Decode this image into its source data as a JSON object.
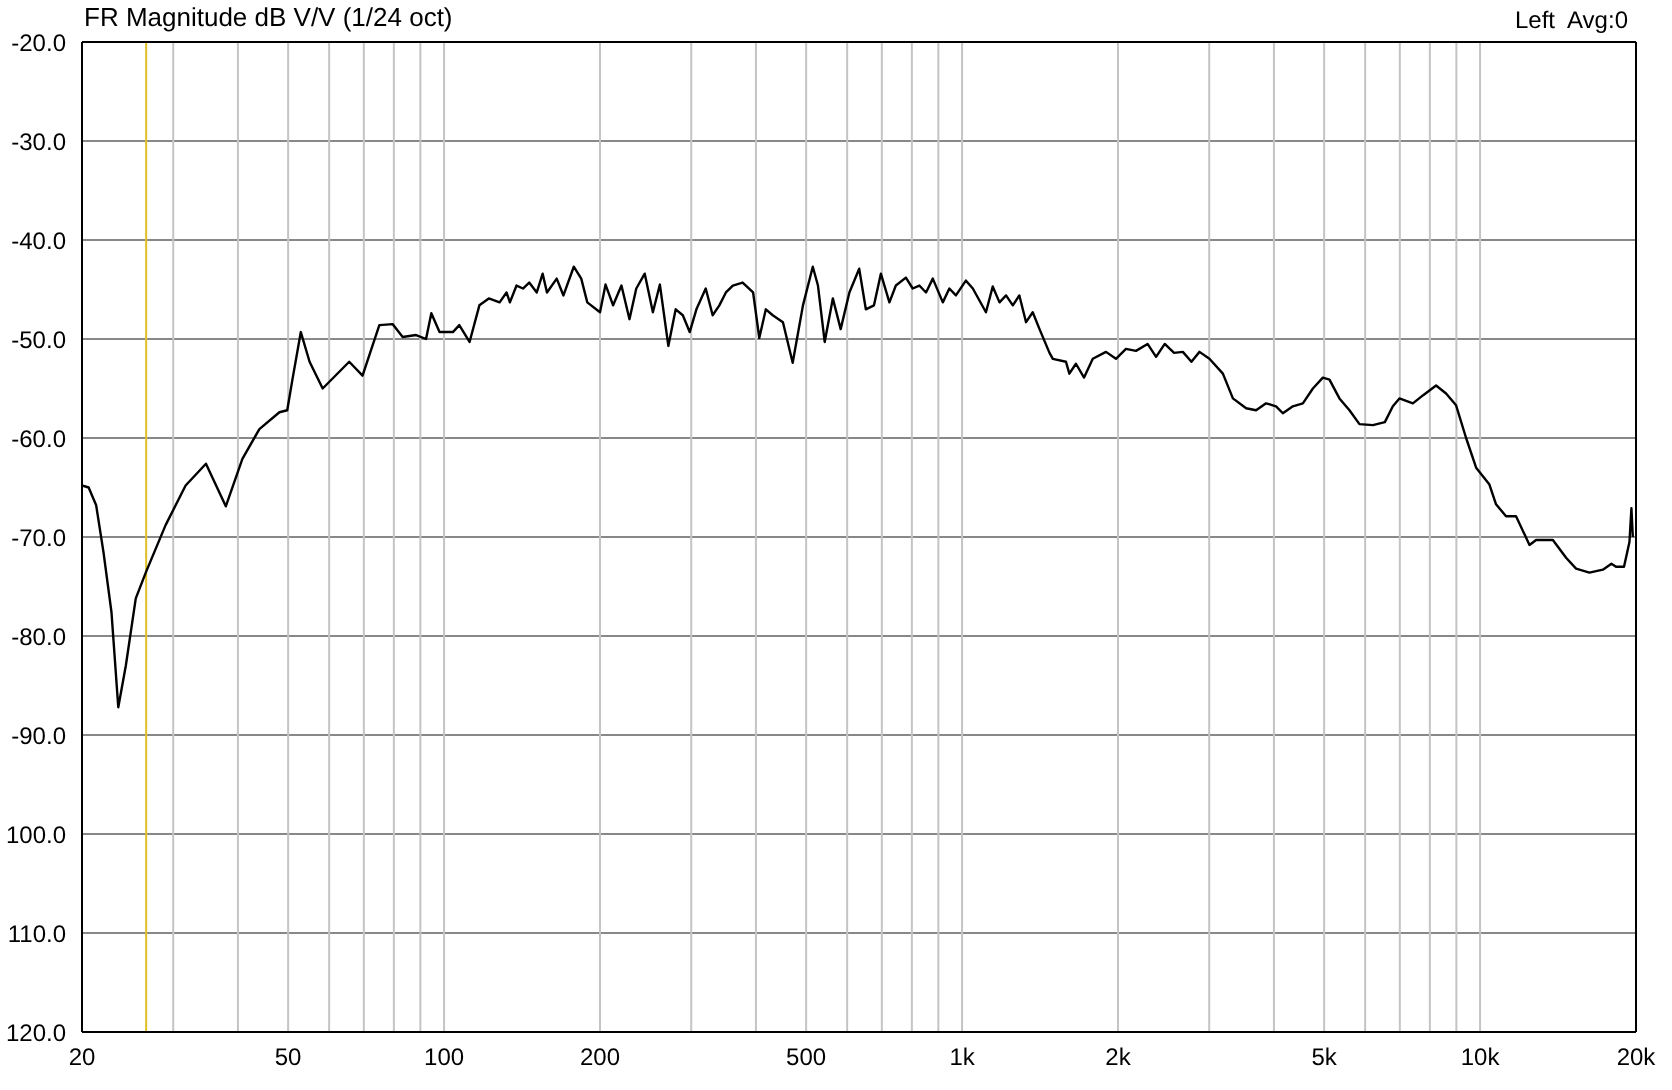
{
  "chart_data": {
    "type": "line",
    "title": "FR Magnitude dB V/V (1/24 oct)",
    "annotations": [
      "Left  Avg:0"
    ],
    "x": [
      20,
      20.6,
      21.3,
      22.0,
      22.8,
      23.5,
      24.3,
      25.4,
      26.6,
      29.0,
      31.7,
      34.7,
      37.9,
      40.8,
      44.0,
      48.1,
      49.8,
      51.0,
      52.9,
      55.0,
      58.3,
      65.6,
      69.6,
      75.0,
      79.6,
      83.2,
      88.3,
      92.3,
      94.5,
      98.0,
      104,
      107,
      112,
      117,
      122,
      128,
      132,
      134,
      138,
      142,
      146,
      151,
      155,
      158,
      165,
      170,
      178,
      184,
      189,
      200,
      205,
      212,
      220,
      228,
      235,
      244,
      253,
      261,
      271,
      280,
      289,
      298,
      307,
      320,
      330,
      340,
      350,
      361,
      377,
      395,
      406,
      418,
      431,
      451,
      471,
      493,
      515,
      527,
      543,
      563,
      583,
      606,
      633,
      652,
      676,
      697,
      724,
      745,
      779,
      803,
      827,
      852,
      878,
      918,
      945,
      973,
      1017,
      1049,
      1112,
      1146,
      1181,
      1216,
      1253,
      1290,
      1329,
      1369,
      1411,
      1475,
      1497,
      1587,
      1611,
      1659,
      1720,
      1788,
      1896,
      1982,
      2072,
      2166,
      2281,
      2369,
      2462,
      2566,
      2668,
      2772,
      2873,
      3003,
      3188,
      3333,
      3535,
      3695,
      3863,
      4038,
      4162,
      4351,
      4549,
      4756,
      4972,
      5120,
      5352,
      5596,
      5850,
      6210,
      6549,
      6786,
      6988,
      7418,
      7755,
      8224,
      8598,
      8989,
      9398,
      9826,
      10425,
      10736,
      11224,
      11734,
      12457,
      12829,
      13822,
      14657,
      15323,
      16261,
      17260,
      17930,
      18301,
      18962,
      19426,
      19597,
      19719
    ],
    "values": [
      -64.8,
      -65.0,
      -66.8,
      -71.5,
      -77.6,
      -87.2,
      -83.0,
      -76.2,
      -73.5,
      -68.8,
      -64.8,
      -62.6,
      -66.9,
      -62.1,
      -59.1,
      -57.4,
      -57.2,
      -54.0,
      -49.3,
      -52.3,
      -55.0,
      -52.3,
      -53.7,
      -48.6,
      -48.5,
      -49.8,
      -49.6,
      -50.0,
      -47.4,
      -49.3,
      -49.3,
      -48.6,
      -50.3,
      -46.6,
      -45.9,
      -46.3,
      -45.3,
      -46.3,
      -44.6,
      -44.9,
      -44.3,
      -45.3,
      -43.4,
      -45.3,
      -43.9,
      -45.6,
      -42.7,
      -43.9,
      -46.3,
      -47.3,
      -44.5,
      -46.6,
      -44.6,
      -48.0,
      -44.9,
      -43.4,
      -47.3,
      -44.5,
      -50.7,
      -47.0,
      -47.6,
      -49.3,
      -47.0,
      -44.9,
      -47.6,
      -46.6,
      -45.3,
      -44.6,
      -44.3,
      -45.3,
      -49.9,
      -47.0,
      -47.6,
      -48.3,
      -52.4,
      -46.6,
      -42.7,
      -44.6,
      -50.3,
      -45.9,
      -49.0,
      -45.3,
      -42.9,
      -47.0,
      -46.6,
      -43.4,
      -46.3,
      -44.6,
      -43.8,
      -44.9,
      -44.6,
      -45.3,
      -43.9,
      -46.3,
      -44.9,
      -45.6,
      -44.1,
      -44.9,
      -47.3,
      -44.7,
      -46.3,
      -45.6,
      -46.6,
      -45.6,
      -48.3,
      -47.3,
      -49.0,
      -51.4,
      -52.0,
      -52.3,
      -53.5,
      -52.5,
      -53.9,
      -52.0,
      -51.3,
      -52.0,
      -51.0,
      -51.2,
      -50.5,
      -51.8,
      -50.5,
      -51.4,
      -51.3,
      -52.3,
      -51.3,
      -52.0,
      -53.5,
      -56.0,
      -57.0,
      -57.2,
      -56.5,
      -56.8,
      -57.5,
      -56.8,
      -56.5,
      -55.0,
      -53.9,
      -54.1,
      -56.0,
      -57.2,
      -58.6,
      -58.7,
      -58.4,
      -56.8,
      -56.0,
      -56.5,
      -55.7,
      -54.7,
      -55.5,
      -56.7,
      -60.0,
      -63.0,
      -64.7,
      -66.7,
      -67.9,
      -67.9,
      -70.8,
      -70.3,
      -70.3,
      -72.1,
      -73.2,
      -73.6,
      -73.3,
      -72.7,
      -73.0,
      -73.0,
      -70.5,
      -67.1,
      -70.0
    ],
    "color": "#000000",
    "xlim": [
      20,
      20000
    ],
    "xticks": [
      20,
      {
        "value": 30,
        "label": null
      },
      {
        "value": 40,
        "label": null
      },
      50,
      {
        "value": 60,
        "label": null
      },
      {
        "value": 70,
        "label": null
      },
      {
        "value": 80,
        "label": null
      },
      {
        "value": 90,
        "label": null
      },
      100,
      200,
      {
        "value": 300,
        "label": null
      },
      {
        "value": 400,
        "label": null
      },
      500,
      {
        "value": 600,
        "label": null
      },
      {
        "value": 700,
        "label": null
      },
      {
        "value": 800,
        "label": null
      },
      {
        "value": 900,
        "label": null
      },
      {
        "value": 1000,
        "label": "1k"
      },
      {
        "value": 2000,
        "label": "2k"
      },
      {
        "value": 3000,
        "label": null
      },
      {
        "value": 4000,
        "label": null
      },
      {
        "value": 5000,
        "label": "5k"
      },
      {
        "value": 6000,
        "label": null
      },
      {
        "value": 7000,
        "label": null
      },
      {
        "value": 8000,
        "label": null
      },
      {
        "value": 9000,
        "label": null
      },
      {
        "value": 10000,
        "label": "10k"
      },
      {
        "value": 20000,
        "label": "20k"
      }
    ],
    "ylim": [
      -120,
      -20
    ],
    "yticks": [
      {
        "value": -20,
        "label": "-20.0"
      },
      {
        "value": -30,
        "label": "-30.0"
      },
      {
        "value": -40,
        "label": "-40.0"
      },
      {
        "value": -50,
        "label": "-50.0"
      },
      {
        "value": -60,
        "label": "-60.0"
      },
      {
        "value": -70,
        "label": "-70.0"
      },
      {
        "value": -80,
        "label": "-80.0"
      },
      {
        "value": -90,
        "label": "-90.0"
      },
      {
        "value": -100,
        "label": "100.0"
      },
      {
        "value": -110,
        "label": "110.0"
      },
      {
        "value": -120,
        "label": "120.0"
      }
    ],
    "log": "x",
    "grid": true,
    "ref_lines": [
      {
        "axis": "x",
        "value": 26.6,
        "color": "#e0c020"
      }
    ]
  }
}
